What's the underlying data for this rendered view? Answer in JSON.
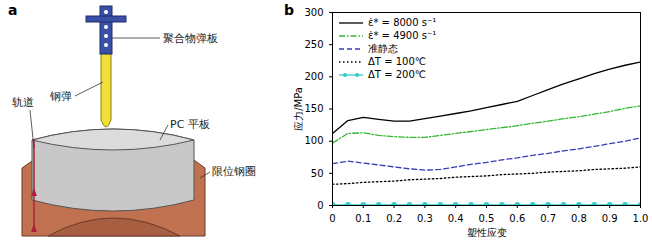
{
  "diagram": {
    "panel": "a",
    "labels": {
      "sabot": "聚合物弹板",
      "projectile": "钢弹",
      "rail": "轨道",
      "plate": "PC 平板",
      "ring": "限位钢圈"
    }
  },
  "chart_data": {
    "type": "line",
    "panel": "b",
    "x_label": "塑性应变",
    "y_label": "应力/MPa",
    "x": [
      0,
      0.05,
      0.1,
      0.15,
      0.2,
      0.25,
      0.3,
      0.35,
      0.4,
      0.45,
      0.5,
      0.55,
      0.6,
      0.65,
      0.7,
      0.75,
      0.8,
      0.85,
      0.9,
      0.95,
      1.0
    ],
    "series": [
      {
        "name": "ε̇* = 8000 s⁻¹",
        "color": "#000000",
        "line_style": "solid",
        "values": [
          112,
          132,
          137,
          134,
          131,
          131,
          135,
          139,
          143,
          147,
          152,
          157,
          162,
          171,
          180,
          189,
          197,
          205,
          212,
          218,
          223
        ]
      },
      {
        "name": "ε̇* = 4900 s⁻¹",
        "color": "#33b833",
        "line_style": "dashdot",
        "values": [
          97,
          112,
          113,
          109,
          107,
          106,
          106,
          109,
          112,
          115,
          118,
          121,
          124,
          128,
          131,
          135,
          138,
          142,
          146,
          151,
          155
        ]
      },
      {
        "name": "准静态",
        "color": "#3a3ab5",
        "line_style": "dashed",
        "values": [
          65,
          69,
          66,
          63,
          60,
          57,
          55,
          56,
          60,
          64,
          67,
          71,
          74,
          78,
          81,
          85,
          88,
          92,
          96,
          100,
          105
        ]
      },
      {
        "name": "ΔT = 100℃",
        "color": "#000000",
        "line_style": "dotted",
        "values": [
          33,
          34,
          36,
          37,
          38,
          40,
          41,
          42,
          44,
          45,
          46,
          48,
          49,
          50,
          52,
          53,
          54,
          56,
          57,
          58,
          60
        ]
      },
      {
        "name": "ΔT = 200℃",
        "color": "#33cccc",
        "line_style": "solid",
        "marker": "circle",
        "values": [
          1,
          1,
          1,
          1,
          1,
          1,
          1,
          1,
          1,
          1,
          1,
          1,
          1,
          1,
          1,
          1,
          1,
          1,
          1,
          1,
          1
        ]
      }
    ],
    "xlim": [
      0,
      1.0
    ],
    "xticks": [
      0,
      0.1,
      0.2,
      0.3,
      0.4,
      0.5,
      0.6,
      0.7,
      0.8,
      0.9,
      {
        "value": 1.0,
        "label": "1.0"
      }
    ],
    "ylim": [
      0,
      300
    ],
    "yticks": [
      0,
      50,
      100,
      150,
      200,
      250,
      300
    ],
    "legend": "top-left"
  }
}
